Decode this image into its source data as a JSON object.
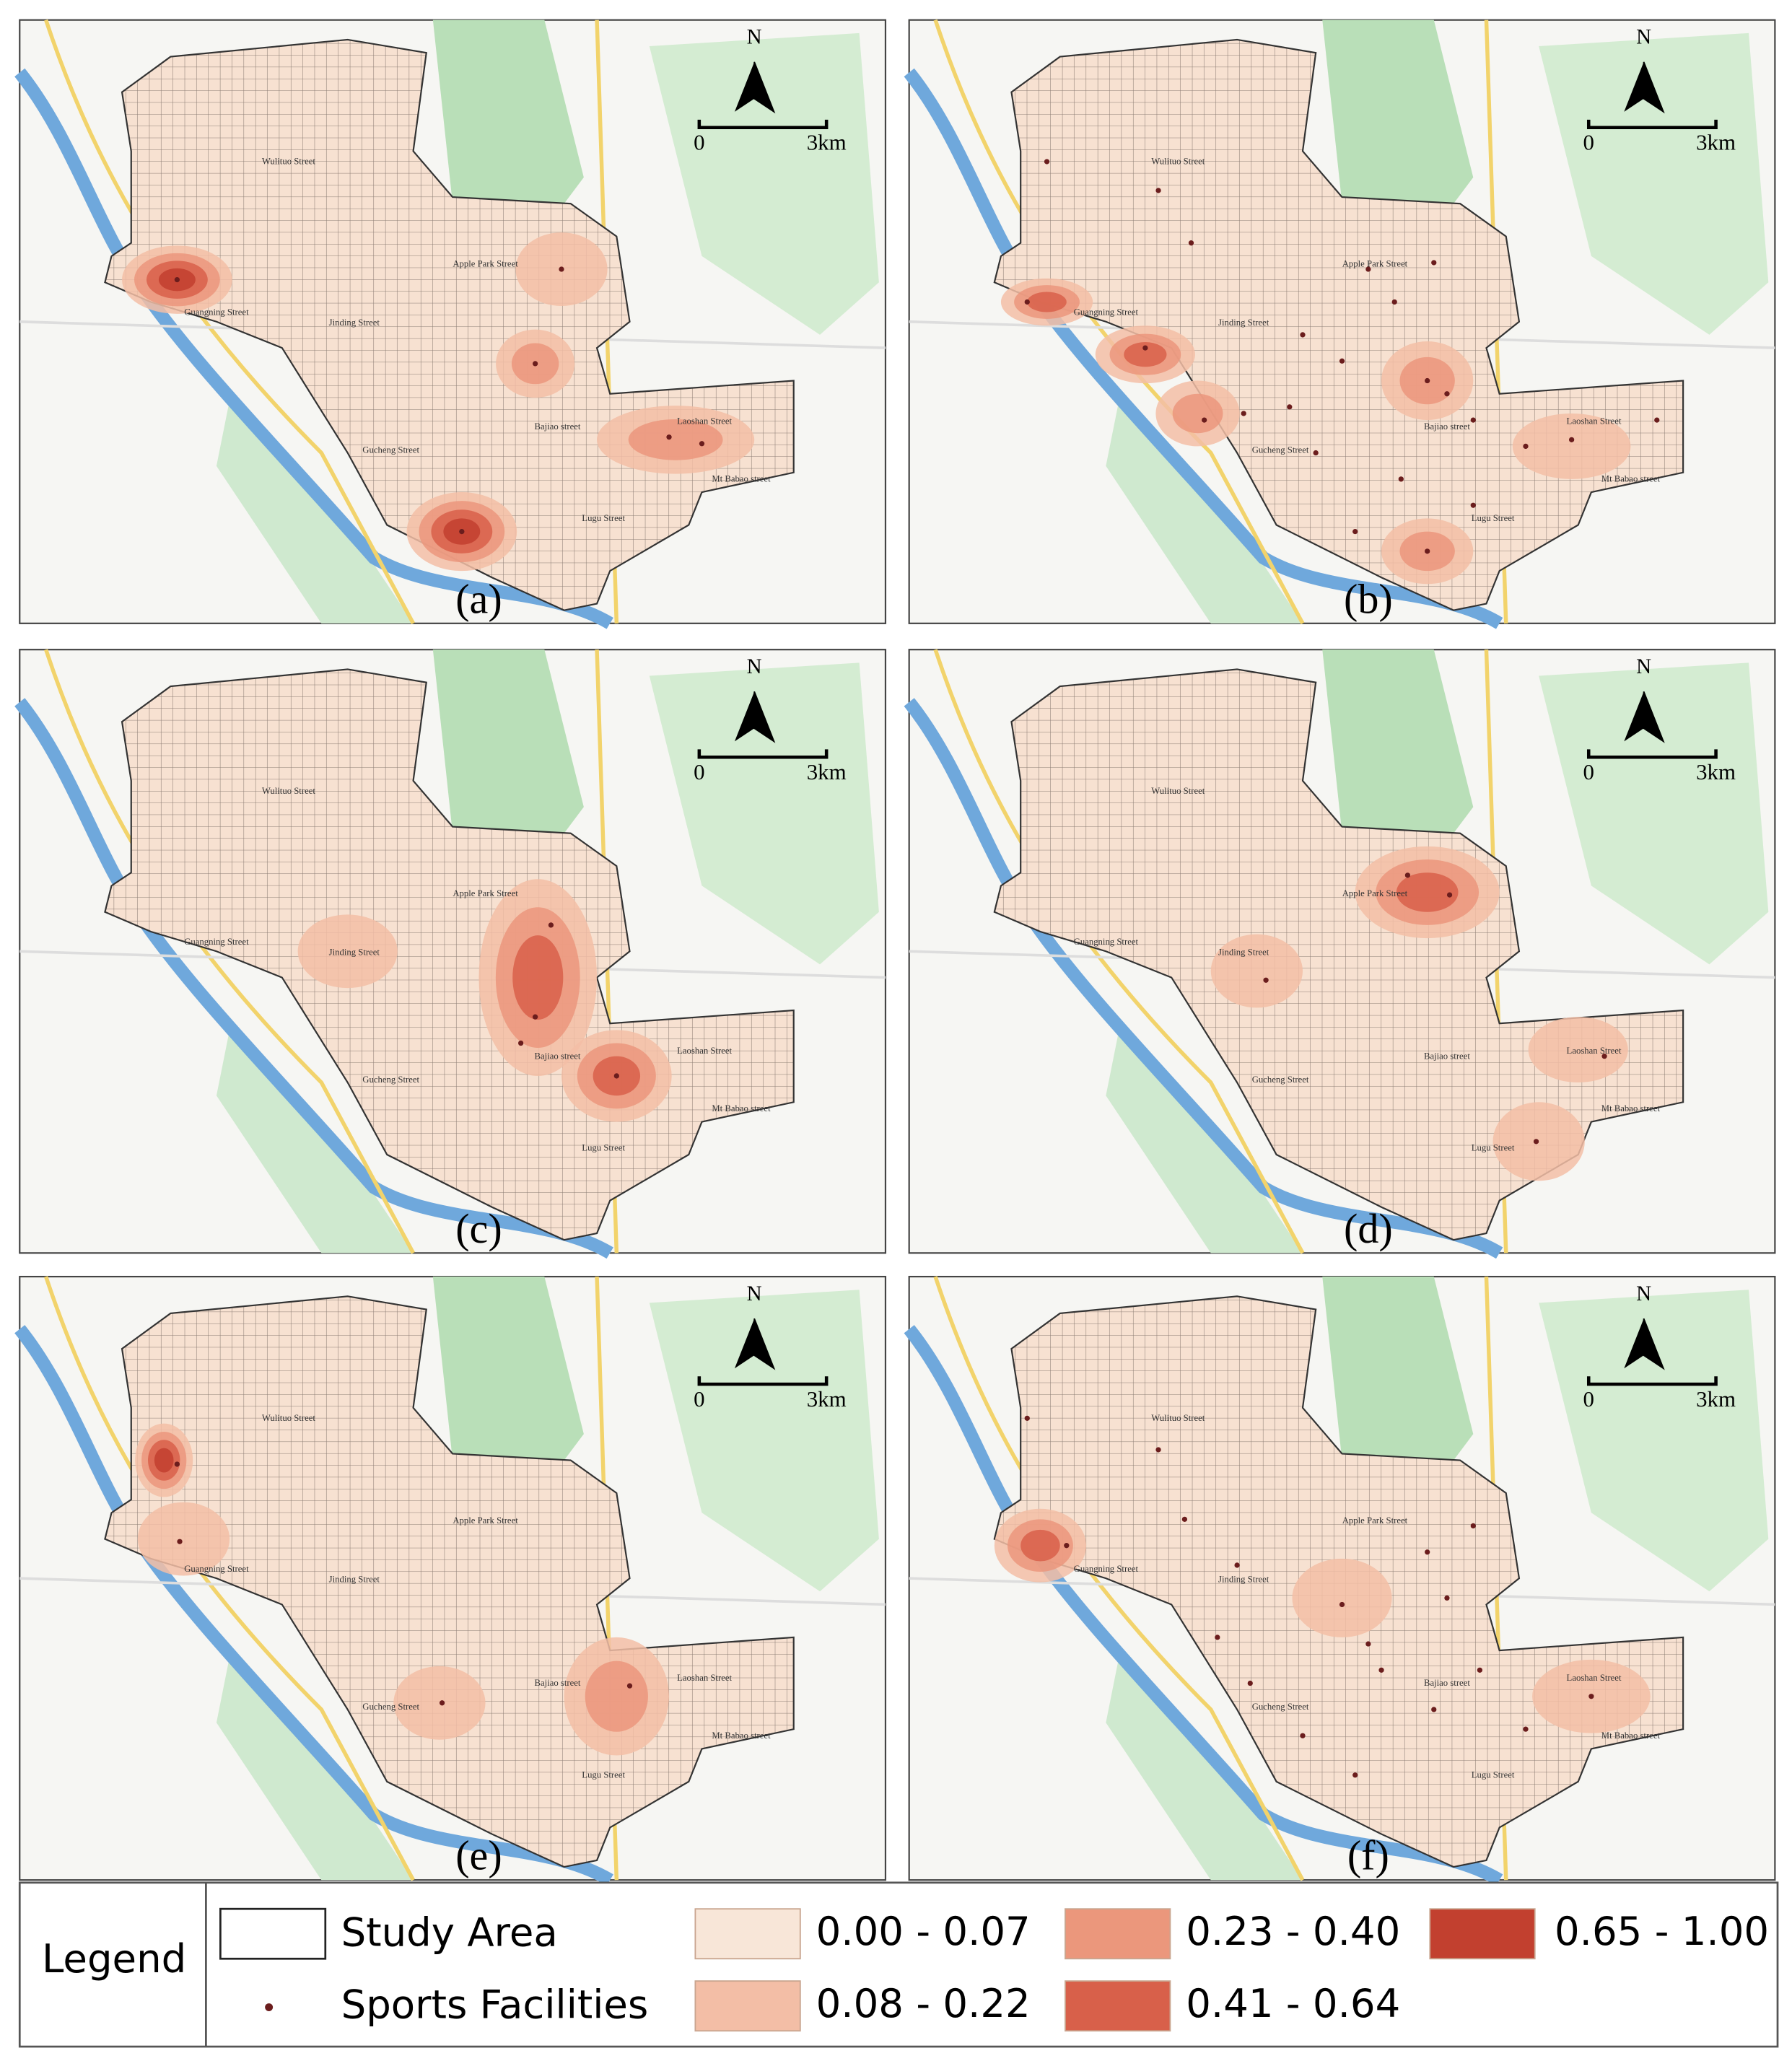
{
  "scale": {
    "north": "N",
    "start": "0",
    "end": "3km"
  },
  "streets": [
    "Wulituo Street",
    "Apple Park Street",
    "Guangning Street",
    "Jinding Street",
    "Bajiao street",
    "Laoshan Street",
    "Gucheng Street",
    "Mt Babao street",
    "Lugu Street"
  ],
  "panels": [
    {
      "label": "(a)"
    },
    {
      "label": "(b)"
    },
    {
      "label": "(c)"
    },
    {
      "label": "(d)"
    },
    {
      "label": "(e)"
    },
    {
      "label": "(f)"
    }
  ],
  "legend": {
    "title": "Legend",
    "items": [
      "Study Area",
      "Sports Facilities"
    ],
    "classes": [
      {
        "label": "0.00 - 0.07",
        "color": "#f8e6d8"
      },
      {
        "label": "0.08 - 0.22",
        "color": "#f3bea6"
      },
      {
        "label": "0.23 - 0.40",
        "color": "#eb977c"
      },
      {
        "label": "0.41 - 0.64",
        "color": "#d8604a"
      },
      {
        "label": "0.65 - 1.00",
        "color": "#c2402f"
      }
    ]
  }
}
